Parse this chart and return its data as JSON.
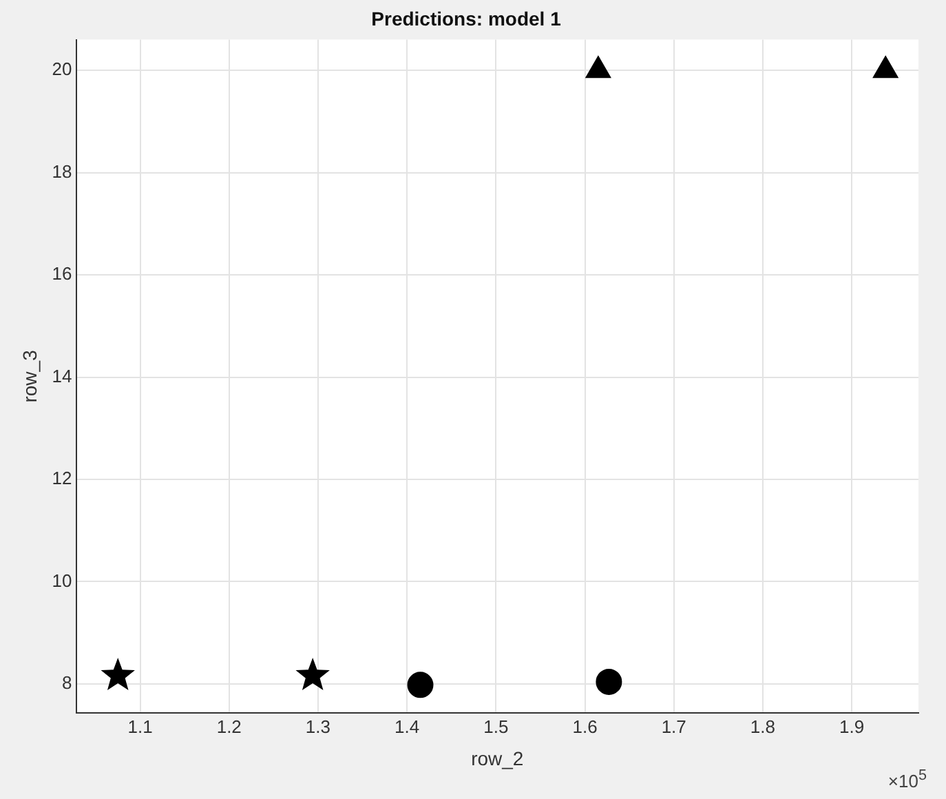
{
  "chart_data": {
    "type": "scatter",
    "title": "Predictions: model 1",
    "xlabel": "row_2",
    "ylabel": "row_3",
    "series": [
      {
        "color": "#000000",
        "marker": "star",
        "x": [
          1.075,
          1.294
        ],
        "values": [
          8.16,
          8.16
        ]
      },
      {
        "color": "#000000",
        "marker": "circle",
        "x": [
          1.415,
          1.627
        ],
        "values": [
          7.98,
          8.04
        ]
      },
      {
        "color": "#000000",
        "marker": "triangle",
        "x": [
          1.615,
          1.938
        ],
        "values": [
          20,
          20
        ]
      }
    ],
    "xlim": [
      1.028,
      1.975
    ],
    "xticks": [
      1.1,
      1.2,
      1.3,
      1.4,
      1.5,
      1.6,
      1.7,
      1.8,
      1.9
    ],
    "ylim": [
      7.43,
      20.6
    ],
    "yticks": [
      8,
      10,
      12,
      14,
      16,
      18,
      20
    ],
    "grid": true,
    "legend": false,
    "annotations": [
      "×10$^{5}$"
    ]
  }
}
